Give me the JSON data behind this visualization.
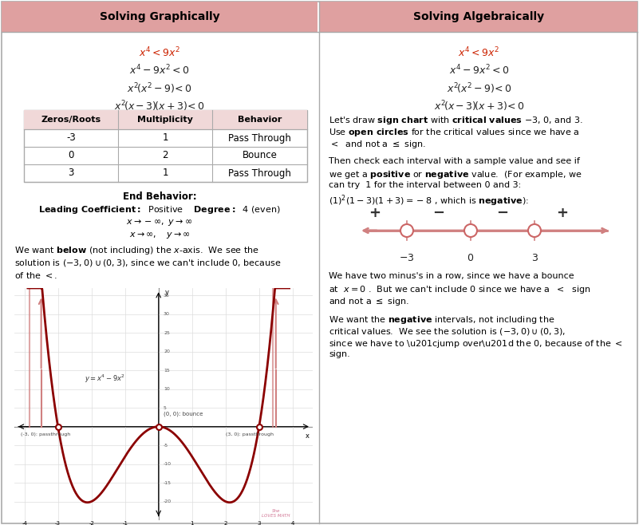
{
  "title_left": "Solving Graphically",
  "title_right": "Solving Algebraically",
  "header_bg": "#dfa0a0",
  "bg_color": "#ffffff",
  "red_color": "#cc2200",
  "dark_red": "#8b0000",
  "pink_line": "#d08080",
  "table_header_bg": "#f0d8d8",
  "table_zeros": [
    "-3",
    "0",
    "3"
  ],
  "table_mult": [
    "1",
    "2",
    "1"
  ],
  "table_behav": [
    "Pass Through",
    "Bounce",
    "Pass Through"
  ]
}
